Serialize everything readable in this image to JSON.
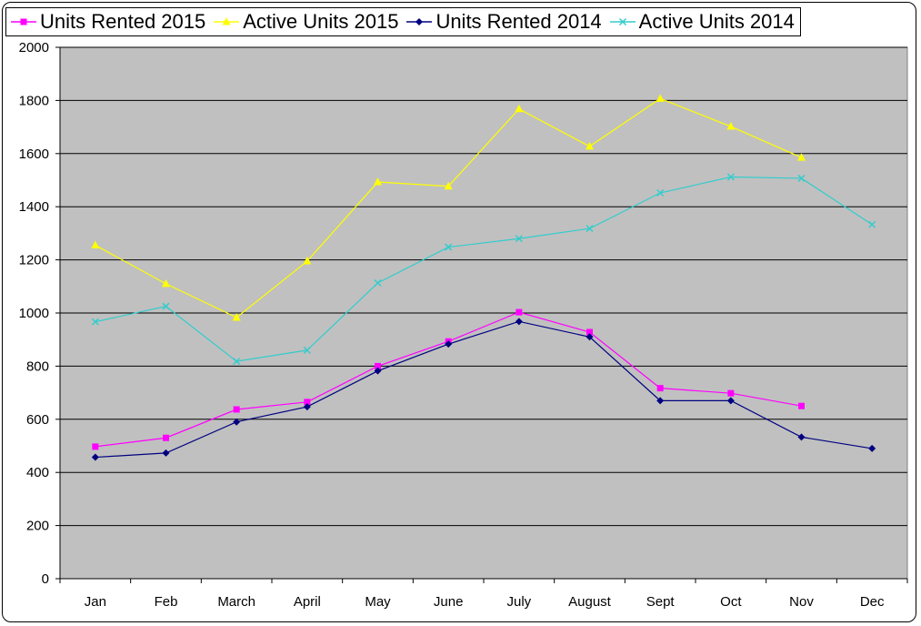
{
  "chart_data": {
    "type": "line",
    "categories": [
      "Jan",
      "Feb",
      "March",
      "April",
      "May",
      "June",
      "July",
      "August",
      "Sept",
      "Oct",
      "Nov",
      "Dec"
    ],
    "ylim": [
      0,
      2000
    ],
    "yticks": [
      0,
      200,
      400,
      600,
      800,
      1000,
      1200,
      1400,
      1600,
      1800,
      2000
    ],
    "grid": "horizontal",
    "plot_background": "#c0c0c0",
    "legend": "top",
    "series": [
      {
        "name": "Units Rented 2015",
        "color": "#ff00ff",
        "marker": "square",
        "values": [
          497,
          530,
          637,
          665,
          800,
          893,
          1003,
          928,
          717,
          698,
          650,
          null
        ]
      },
      {
        "name": "Active Units 2015",
        "color": "#ffff00",
        "marker": "triangle",
        "values": [
          1255,
          1110,
          983,
          1195,
          1493,
          1477,
          1768,
          1627,
          1807,
          1702,
          1585,
          null
        ]
      },
      {
        "name": "Units Rented 2014",
        "color": "#000080",
        "marker": "diamond",
        "values": [
          457,
          473,
          590,
          647,
          782,
          883,
          968,
          910,
          670,
          670,
          533,
          490
        ]
      },
      {
        "name": "Active Units 2014",
        "color": "#33cccc",
        "marker": "x",
        "values": [
          967,
          1025,
          818,
          860,
          1113,
          1248,
          1280,
          1318,
          1452,
          1512,
          1507,
          1333
        ]
      }
    ]
  }
}
